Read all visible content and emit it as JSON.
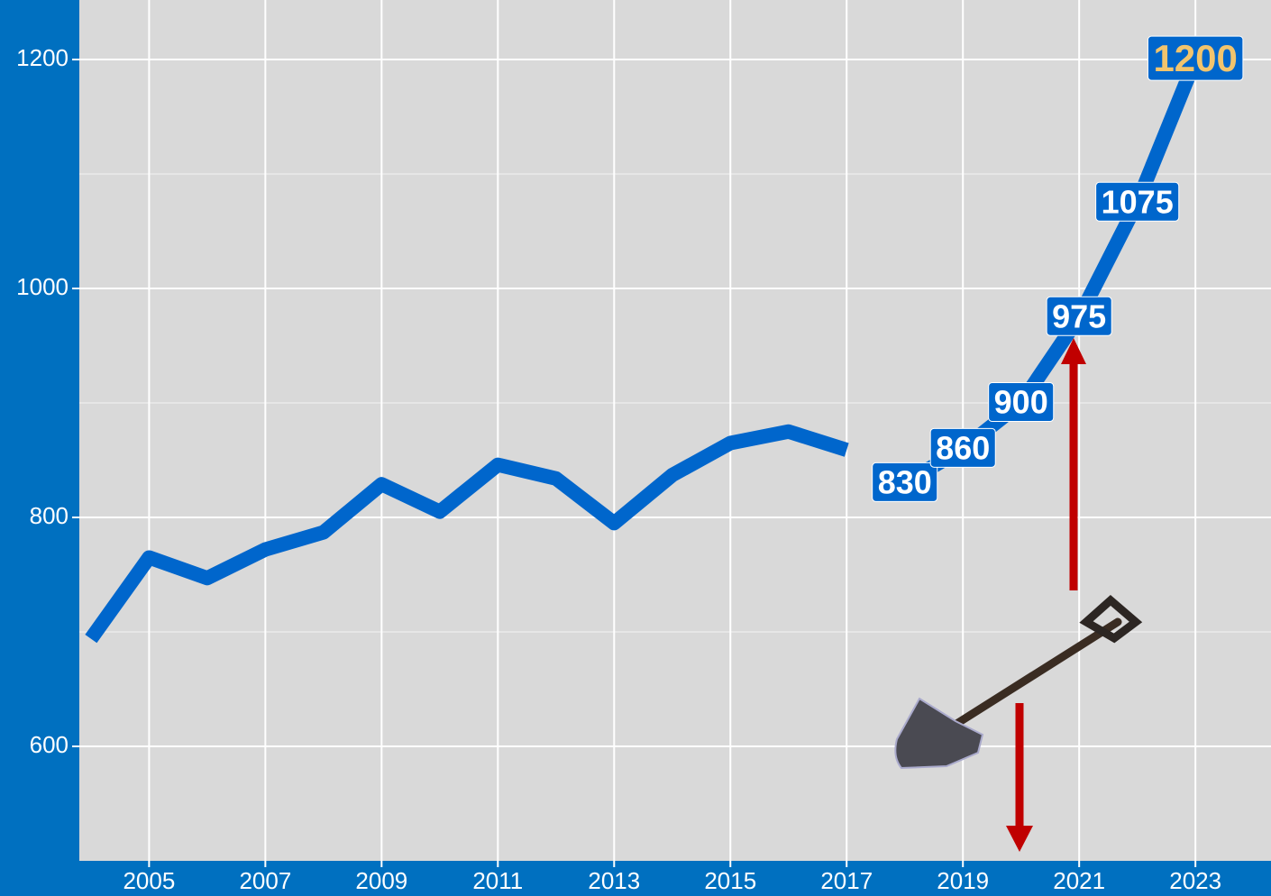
{
  "chart_data": {
    "type": "line",
    "x": [
      2004,
      2005,
      2006,
      2007,
      2008,
      2009,
      2010,
      2011,
      2012,
      2013,
      2014,
      2015,
      2016,
      2017,
      2018,
      2019,
      2020,
      2021,
      2022,
      2023
    ],
    "series": [
      {
        "color": "#0066cc",
        "values": [
          694,
          765,
          747,
          772,
          787,
          829,
          805,
          846,
          834,
          795,
          837,
          865,
          875,
          859,
          null,
          null,
          null,
          null,
          null,
          null
        ]
      },
      {
        "color": "#0066cc",
        "values": [
          null,
          null,
          null,
          null,
          null,
          null,
          null,
          null,
          null,
          null,
          null,
          null,
          null,
          null,
          830,
          860,
          900,
          975,
          1075,
          1200
        ],
        "label_colors": [
          null,
          null,
          null,
          null,
          null,
          null,
          null,
          null,
          null,
          null,
          null,
          null,
          null,
          null,
          "#ffffff",
          "#ffffff",
          "#ffffff",
          "#ffffff",
          "#ffffff",
          "#f2c46d"
        ]
      }
    ],
    "xlim": [
      2003.8,
      2024.3
    ],
    "xticks": [
      2005,
      2007,
      2009,
      2011,
      2013,
      2015,
      2017,
      2019,
      2021,
      2023
    ],
    "ylim": [
      500,
      1252
    ],
    "yticks": [
      600,
      800,
      1000,
      1200
    ],
    "yminor": [
      700,
      900,
      1100
    ],
    "grid": true
  }
}
